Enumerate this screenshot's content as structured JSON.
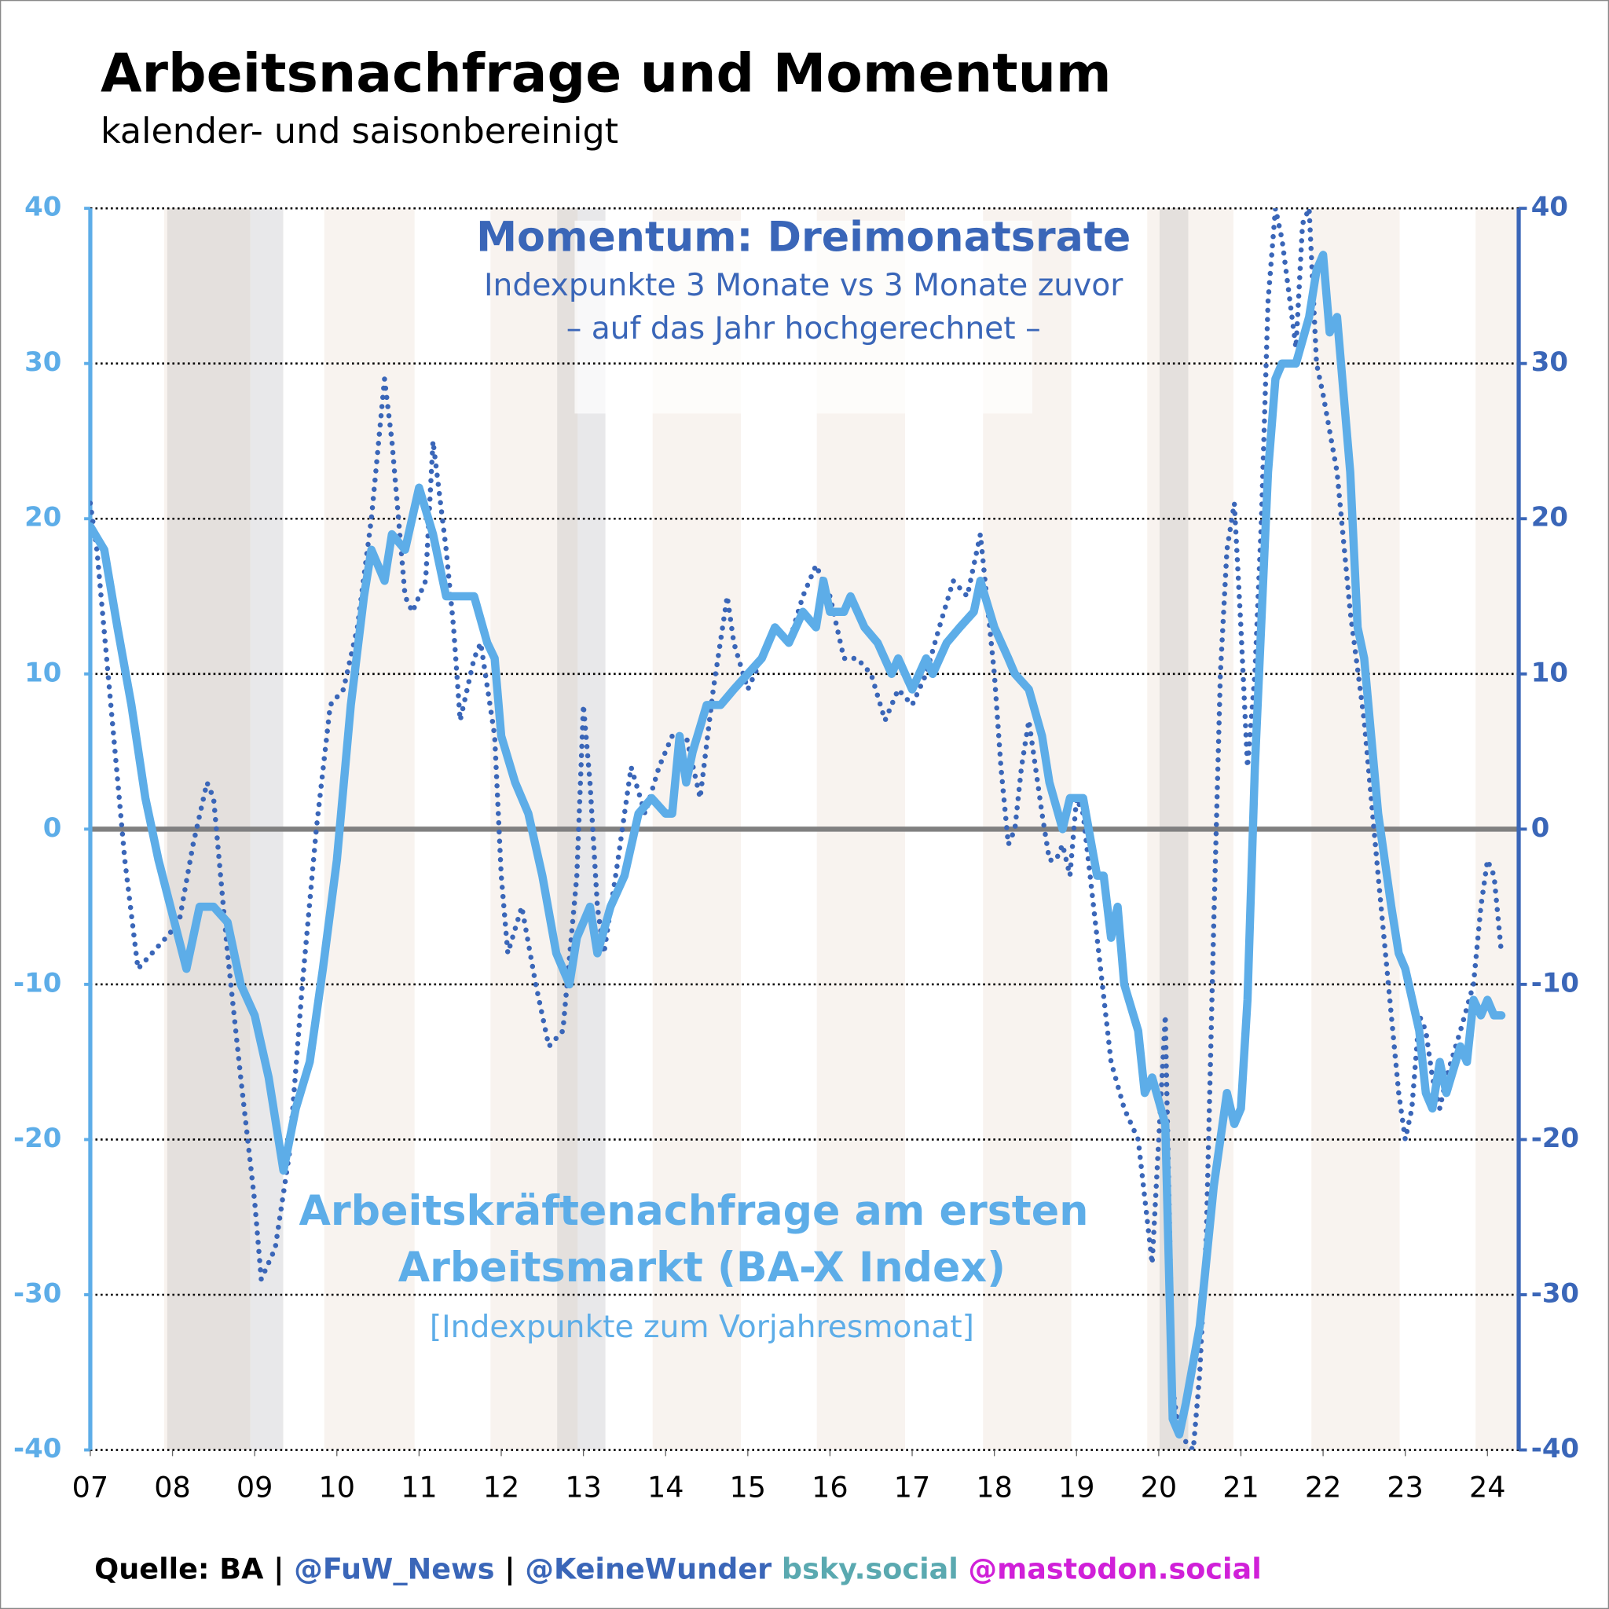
{
  "chart_data": {
    "type": "line",
    "title": "Arbeitsnachfrage und Momentum",
    "subtitle": "kalender- und saisonbereinigt",
    "annotation_momentum": [
      "Momentum: Dreimonatsrate",
      "Indexpunkte 3 Monate vs 3 Monate zuvor",
      "– auf das Jahr hochgerechnet –"
    ],
    "annotation_index": [
      "Arbeitskräftenachfrage am ersten",
      "Arbeitsmarkt (BA-X Index)",
      "[Indexpunkte zum Vorjahresmonat]"
    ],
    "source": [
      {
        "text": "Quelle: BA | ",
        "color": "#000000"
      },
      {
        "text": "@FuW_News",
        "color": "#3a66b8"
      },
      {
        "text": " | ",
        "color": "#000000"
      },
      {
        "text": "@KeineWunder",
        "color": "#3a66b8"
      },
      {
        "text": " bsky.social",
        "color": "#5aa9b0"
      },
      {
        "text": " @mastodon.social",
        "color": "#d020d8"
      }
    ],
    "xlim": [
      2007,
      2024.38
    ],
    "xticks": [
      {
        "value": 2007,
        "label": "07"
      },
      {
        "value": 2008,
        "label": "08"
      },
      {
        "value": 2009,
        "label": "09"
      },
      {
        "value": 2010,
        "label": "10"
      },
      {
        "value": 2011,
        "label": "11"
      },
      {
        "value": 2012,
        "label": "12"
      },
      {
        "value": 2013,
        "label": "13"
      },
      {
        "value": 2014,
        "label": "14"
      },
      {
        "value": 2015,
        "label": "15"
      },
      {
        "value": 2016,
        "label": "16"
      },
      {
        "value": 2017,
        "label": "17"
      },
      {
        "value": 2018,
        "label": "18"
      },
      {
        "value": 2019,
        "label": "19"
      },
      {
        "value": 2020,
        "label": "20"
      },
      {
        "value": 2021,
        "label": "21"
      },
      {
        "value": 2022,
        "label": "22"
      },
      {
        "value": 2023,
        "label": "23"
      },
      {
        "value": 2024,
        "label": "24"
      }
    ],
    "ylim": [
      -40,
      40
    ],
    "yticks": [
      -40,
      -30,
      -20,
      -10,
      0,
      10,
      20,
      30,
      40
    ],
    "y2lim": [
      -40,
      40
    ],
    "y2ticks": [
      -40,
      -30,
      -20,
      -10,
      0,
      10,
      20,
      30,
      40
    ],
    "grid": true,
    "series": [
      {
        "name": "Arbeitskräftenachfrage am ersten Arbeitsmarkt (BA-X Index)",
        "color": "#5dade8",
        "style": "solid",
        "x": [
          2007.0,
          2007.17,
          2007.33,
          2007.5,
          2007.67,
          2007.83,
          2008.0,
          2008.17,
          2008.33,
          2008.5,
          2008.67,
          2008.83,
          2009.0,
          2009.17,
          2009.35,
          2009.5,
          2009.67,
          2009.83,
          2010.0,
          2010.17,
          2010.33,
          2010.42,
          2010.58,
          2010.67,
          2010.83,
          2011.0,
          2011.17,
          2011.33,
          2011.5,
          2011.67,
          2011.83,
          2011.92,
          2012.0,
          2012.17,
          2012.33,
          2012.5,
          2012.67,
          2012.83,
          2012.92,
          2013.08,
          2013.17,
          2013.33,
          2013.5,
          2013.67,
          2013.83,
          2014.0,
          2014.08,
          2014.17,
          2014.25,
          2014.33,
          2014.5,
          2014.67,
          2014.83,
          2015.0,
          2015.17,
          2015.33,
          2015.5,
          2015.67,
          2015.83,
          2015.92,
          2016.0,
          2016.17,
          2016.25,
          2016.42,
          2016.58,
          2016.75,
          2016.83,
          2017.0,
          2017.17,
          2017.25,
          2017.42,
          2017.58,
          2017.75,
          2017.83,
          2018.0,
          2018.17,
          2018.25,
          2018.42,
          2018.58,
          2018.67,
          2018.83,
          2018.92,
          2019.08,
          2019.25,
          2019.33,
          2019.42,
          2019.5,
          2019.58,
          2019.75,
          2019.83,
          2019.92,
          2020.08,
          2020.17,
          2020.25,
          2020.33,
          2020.5,
          2020.67,
          2020.83,
          2020.92,
          2021.0,
          2021.08,
          2021.17,
          2021.33,
          2021.42,
          2021.5,
          2021.67,
          2021.83,
          2021.92,
          2022.0,
          2022.08,
          2022.17,
          2022.33,
          2022.42,
          2022.5,
          2022.67,
          2022.83,
          2022.92,
          2023.0,
          2023.17,
          2023.25,
          2023.33,
          2023.42,
          2023.5,
          2023.67,
          2023.75,
          2023.83,
          2023.92,
          2024.0,
          2024.08,
          2024.17
        ],
        "values": [
          19.5,
          18,
          13,
          8,
          2,
          -2,
          -5.5,
          -9,
          -5,
          -5,
          -6,
          -10,
          -12,
          -16,
          -22,
          -18,
          -15,
          -9,
          -2,
          8,
          15,
          18,
          16,
          19,
          18,
          22,
          19,
          15,
          15,
          15,
          12,
          11,
          6,
          3,
          1,
          -3,
          -8,
          -10,
          -7,
          -5,
          -8,
          -5,
          -3,
          1,
          2,
          1,
          1,
          6,
          3,
          5,
          8,
          8,
          9,
          10,
          11,
          13,
          12,
          14,
          13,
          16,
          14,
          14,
          15,
          13,
          12,
          10,
          11,
          9,
          11,
          10,
          12,
          13,
          14,
          16,
          13,
          11,
          10,
          9,
          6,
          3,
          0,
          2,
          2,
          -3,
          -3,
          -7,
          -5,
          -10,
          -13,
          -17,
          -16,
          -19,
          -38,
          -39,
          -37,
          -32,
          -23,
          -17,
          -19,
          -18,
          -11,
          4,
          23,
          29,
          30,
          30,
          33,
          36,
          37,
          32,
          33,
          23,
          13,
          11,
          1,
          -5,
          -8,
          -9,
          -13,
          -17,
          -18,
          -15,
          -17,
          -14,
          -15,
          -11,
          -12,
          -11,
          -12,
          -12
        ]
      },
      {
        "name": "Momentum: Dreimonatsrate",
        "color": "#3a66b8",
        "style": "dotted",
        "axis": "y2",
        "x": [
          2007.0,
          2007.08,
          2007.25,
          2007.42,
          2007.58,
          2007.75,
          2007.92,
          2008.08,
          2008.25,
          2008.42,
          2008.5,
          2008.67,
          2008.83,
          2009.0,
          2009.08,
          2009.25,
          2009.42,
          2009.58,
          2009.75,
          2009.92,
          2010.08,
          2010.25,
          2010.42,
          2010.58,
          2010.67,
          2010.83,
          2010.92,
          2011.08,
          2011.17,
          2011.33,
          2011.42,
          2011.5,
          2011.67,
          2011.75,
          2011.92,
          2012.0,
          2012.08,
          2012.25,
          2012.42,
          2012.58,
          2012.75,
          2012.92,
          2013.0,
          2013.08,
          2013.17,
          2013.25,
          2013.42,
          2013.58,
          2013.75,
          2013.92,
          2014.08,
          2014.25,
          2014.42,
          2014.58,
          2014.75,
          2014.83,
          2015.0,
          2015.17,
          2015.33,
          2015.5,
          2015.67,
          2015.83,
          2016.0,
          2016.17,
          2016.33,
          2016.5,
          2016.67,
          2016.83,
          2017.0,
          2017.17,
          2017.33,
          2017.5,
          2017.67,
          2017.83,
          2018.0,
          2018.08,
          2018.17,
          2018.25,
          2018.33,
          2018.42,
          2018.5,
          2018.58,
          2018.67,
          2018.75,
          2018.83,
          2018.92,
          2019.0,
          2019.08,
          2019.25,
          2019.42,
          2019.58,
          2019.75,
          2019.92,
          2020.08,
          2020.17,
          2020.25,
          2020.42,
          2020.5,
          2020.58,
          2020.67,
          2020.75,
          2020.83,
          2020.92,
          2021.0,
          2021.08,
          2021.17,
          2021.25,
          2021.33,
          2021.42,
          2021.5,
          2021.67,
          2021.75,
          2021.83,
          2021.92,
          2022.0,
          2022.17,
          2022.33,
          2022.5,
          2022.67,
          2022.83,
          2022.92,
          2023.0,
          2023.08,
          2023.17,
          2023.25,
          2023.33,
          2023.42,
          2023.5,
          2023.67,
          2023.83,
          2023.92,
          2024.0,
          2024.08,
          2024.17
        ],
        "values": [
          21,
          18,
          8,
          -2,
          -9,
          -8,
          -7,
          -6,
          -1,
          3,
          2,
          -8,
          -16,
          -24,
          -29,
          -27,
          -21,
          -10,
          0,
          8,
          9,
          13,
          20,
          29,
          25,
          15,
          14,
          16,
          25,
          18,
          13,
          7,
          11,
          12,
          6,
          -3,
          -8,
          -5,
          -10,
          -14,
          -13,
          -3,
          8,
          3,
          -5,
          -8,
          -2,
          4,
          1,
          4,
          6,
          6,
          2,
          9,
          15,
          12,
          9,
          11,
          13,
          12,
          15,
          17,
          15,
          11,
          11,
          10,
          7,
          9,
          8,
          10,
          13,
          16,
          15,
          19,
          10,
          4,
          -1,
          0,
          4,
          7,
          4,
          1,
          -2,
          -2,
          -1,
          -3,
          2,
          1,
          -7,
          -15,
          -18,
          -20,
          -28,
          -12,
          -36,
          -39,
          -40,
          -35,
          -26,
          -6,
          10,
          18,
          21,
          13,
          4,
          10,
          20,
          34,
          40,
          38,
          31,
          39,
          40,
          30,
          28,
          23,
          14,
          7,
          -3,
          -12,
          -17,
          -20,
          -18,
          -12,
          -13,
          -16,
          -18,
          -16,
          -13,
          -10,
          -5,
          -2,
          -3,
          -8
        ]
      }
    ]
  }
}
